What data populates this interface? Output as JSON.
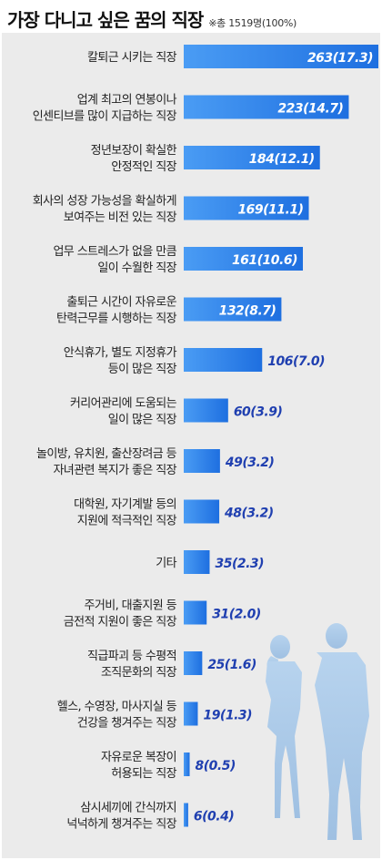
{
  "title": "가장 다니고 싶은 꿈의 직장",
  "note": "※총 1519명(100%)",
  "colors": {
    "bar": "#1e6fe0",
    "bar_light": "#4a9cf4",
    "value_label": "#ffffff",
    "value_label_outside": "#1f3fb0",
    "category_label": "#222222",
    "background": "#ebebeb"
  },
  "chart_data": {
    "type": "bar",
    "orientation": "horizontal",
    "title": "가장 다니고 싶은 꿈의 직장",
    "subtitle": "※총 1519명(100%)",
    "categories": [
      [
        "칼퇴근 시키는 직장"
      ],
      [
        "업계 최고의 연봉이나",
        "인센티브를 많이 지급하는 직장"
      ],
      [
        "정년보장이 확실한",
        "안정적인 직장"
      ],
      [
        "회사의 성장 가능성을 확실하게",
        "보여주는 비전 있는 직장"
      ],
      [
        "업무 스트레스가 없을 만큼",
        "일이 수월한 직장"
      ],
      [
        "출퇴근 시간이 자유로운",
        "탄력근무를 시행하는 직장"
      ],
      [
        "안식휴가, 별도 지정휴가",
        "등이 많은 직장"
      ],
      [
        "커리어관리에 도움되는",
        "일이 많은 직장"
      ],
      [
        "놀이방, 유치원, 출산장려금 등",
        "자녀관련 복지가 좋은 직장"
      ],
      [
        "대학원, 자기계발 등의",
        "지원에 적극적인 직장"
      ],
      [
        "기타"
      ],
      [
        "주거비, 대출지원 등",
        "금전적 지원이 좋은 직장"
      ],
      [
        "직급파괴 등 수평적",
        "조직문화의 직장"
      ],
      [
        "헬스, 수영장, 마사지실 등",
        "건강을 챙겨주는 직장"
      ],
      [
        "자유로운 복장이",
        "허용되는 직장"
      ],
      [
        "삼시세끼에 간식까지",
        "넉넉하게 챙겨주는 직장"
      ]
    ],
    "values": [
      263,
      223,
      184,
      169,
      161,
      132,
      106,
      60,
      49,
      48,
      35,
      31,
      25,
      19,
      8,
      6
    ],
    "percents": [
      17.3,
      14.7,
      12.1,
      11.1,
      10.6,
      8.7,
      7.0,
      3.9,
      3.2,
      3.2,
      2.3,
      2.0,
      1.6,
      1.3,
      0.5,
      0.4
    ],
    "data_labels": [
      "263(17.3)",
      "223(14.7)",
      "184(12.1)",
      "169(11.1)",
      "161(10.6)",
      "132(8.7)",
      "106(7.0)",
      "60(3.9)",
      "49(3.2)",
      "48(3.2)",
      "35(2.3)",
      "31(2.0)",
      "25(1.6)",
      "19(1.3)",
      "8(0.5)",
      "6(0.4)"
    ],
    "xlim": [
      0,
      263
    ],
    "grid": false,
    "legend": "none"
  }
}
